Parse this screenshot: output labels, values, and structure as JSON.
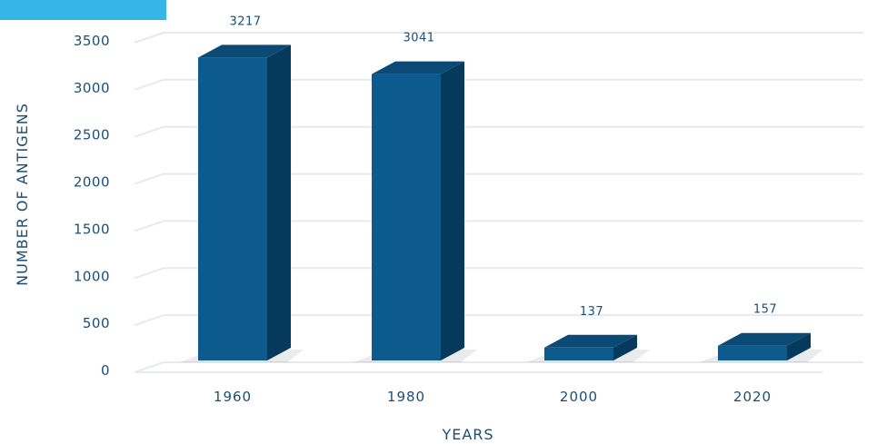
{
  "chart_data": {
    "type": "bar",
    "categories": [
      "1960",
      "1980",
      "2000",
      "2020"
    ],
    "values": [
      3217,
      3041,
      137,
      157
    ],
    "data_labels": [
      "3217",
      "3041",
      "137",
      "157"
    ],
    "xlabel": "YEARS",
    "ylabel": "NUMBER OF ANTIGENS",
    "ylim": [
      0,
      3500
    ],
    "yticks": [
      "0",
      "500",
      "1000",
      "1500",
      "2000",
      "2500",
      "3000",
      "3500"
    ],
    "grid": true,
    "style": "3d",
    "colors": {
      "bar_front": "#0d5a8e",
      "bar_side": "#063a5c",
      "bar_top": "#0a4a75",
      "text": "#1d4e72",
      "gridline": "#e6e9ee",
      "corner_block": "#35b6e8"
    }
  }
}
